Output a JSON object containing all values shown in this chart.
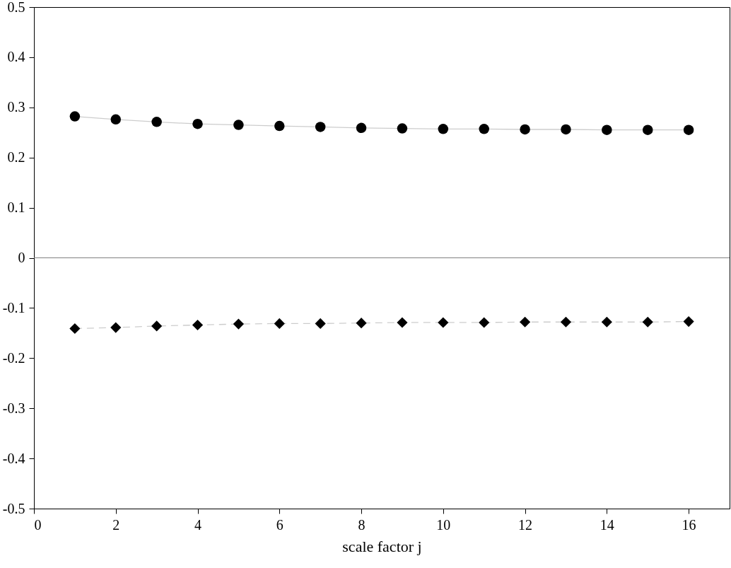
{
  "chart_data": {
    "type": "line",
    "xlabel": "scale factor j",
    "xlim": [
      0,
      17
    ],
    "xticks": [
      0,
      2,
      4,
      6,
      8,
      10,
      12,
      14,
      16
    ],
    "ylim": [
      -0.5,
      0.5
    ],
    "yticks": [
      -0.5,
      -0.4,
      -0.3,
      -0.2,
      -0.1,
      0,
      0.1,
      0.2,
      0.3,
      0.4,
      0.5
    ],
    "grid": false,
    "x": [
      1,
      2,
      3,
      4,
      5,
      6,
      7,
      8,
      9,
      10,
      11,
      12,
      13,
      14,
      15,
      16
    ],
    "series": [
      {
        "color": "#000000",
        "marker": "circle",
        "line_style": "solid",
        "values": [
          0.282,
          0.276,
          0.271,
          0.267,
          0.265,
          0.263,
          0.261,
          0.259,
          0.258,
          0.257,
          0.257,
          0.256,
          0.256,
          0.255,
          0.255,
          0.255
        ]
      },
      {
        "color": "#000000",
        "marker": "diamond",
        "line_style": "dashed",
        "values": [
          -0.141,
          -0.139,
          -0.136,
          -0.134,
          -0.132,
          -0.131,
          -0.131,
          -0.13,
          -0.129,
          -0.129,
          -0.129,
          -0.128,
          -0.128,
          -0.128,
          -0.128,
          -0.127
        ]
      }
    ],
    "ref_lines": [
      {
        "axis": "y",
        "value": 0,
        "color": "#808080"
      }
    ]
  }
}
